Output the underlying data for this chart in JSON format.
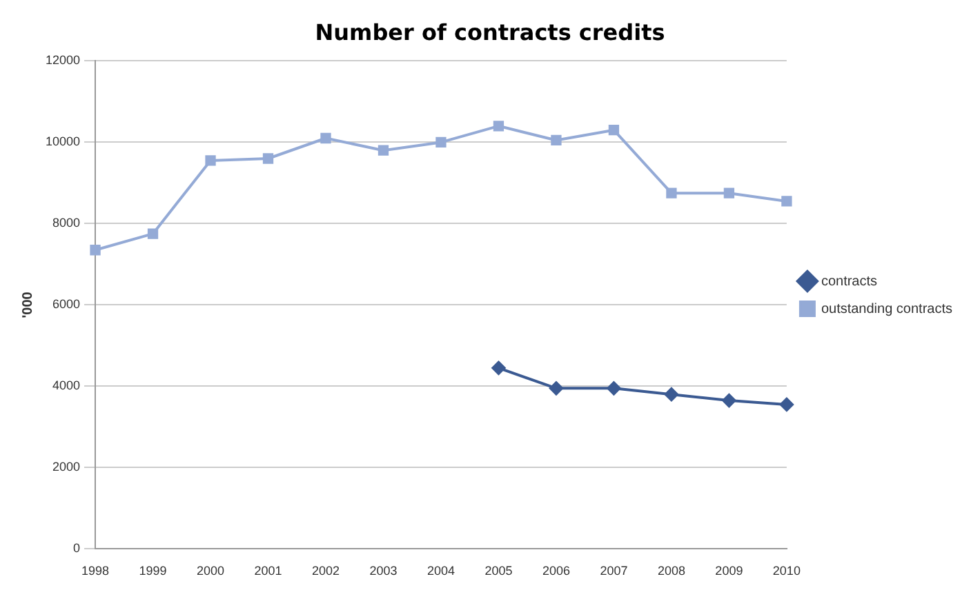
{
  "chart_data": {
    "type": "line",
    "title": "Number of contracts credits",
    "ylabel": "'000",
    "categories": [
      "1998",
      "1999",
      "2000",
      "2001",
      "2002",
      "2003",
      "2004",
      "2005",
      "2006",
      "2007",
      "2008",
      "2009",
      "2010"
    ],
    "series": [
      {
        "name": "contracts",
        "color": "#3b5a92",
        "marker": "diamond",
        "values": [
          null,
          null,
          null,
          null,
          null,
          null,
          null,
          4450,
          3950,
          3950,
          3800,
          3650,
          3550
        ]
      },
      {
        "name": "outstanding contracts",
        "color": "#94aad6",
        "marker": "square",
        "values": [
          7350,
          7750,
          9550,
          9600,
          10100,
          9800,
          10000,
          10400,
          10050,
          10300,
          8750,
          8750,
          8550
        ]
      }
    ],
    "ylim": [
      0,
      12000
    ],
    "yticks": [
      0,
      2000,
      4000,
      6000,
      8000,
      10000,
      12000
    ],
    "grid": "y",
    "legend": "right",
    "line_style": "solid"
  }
}
